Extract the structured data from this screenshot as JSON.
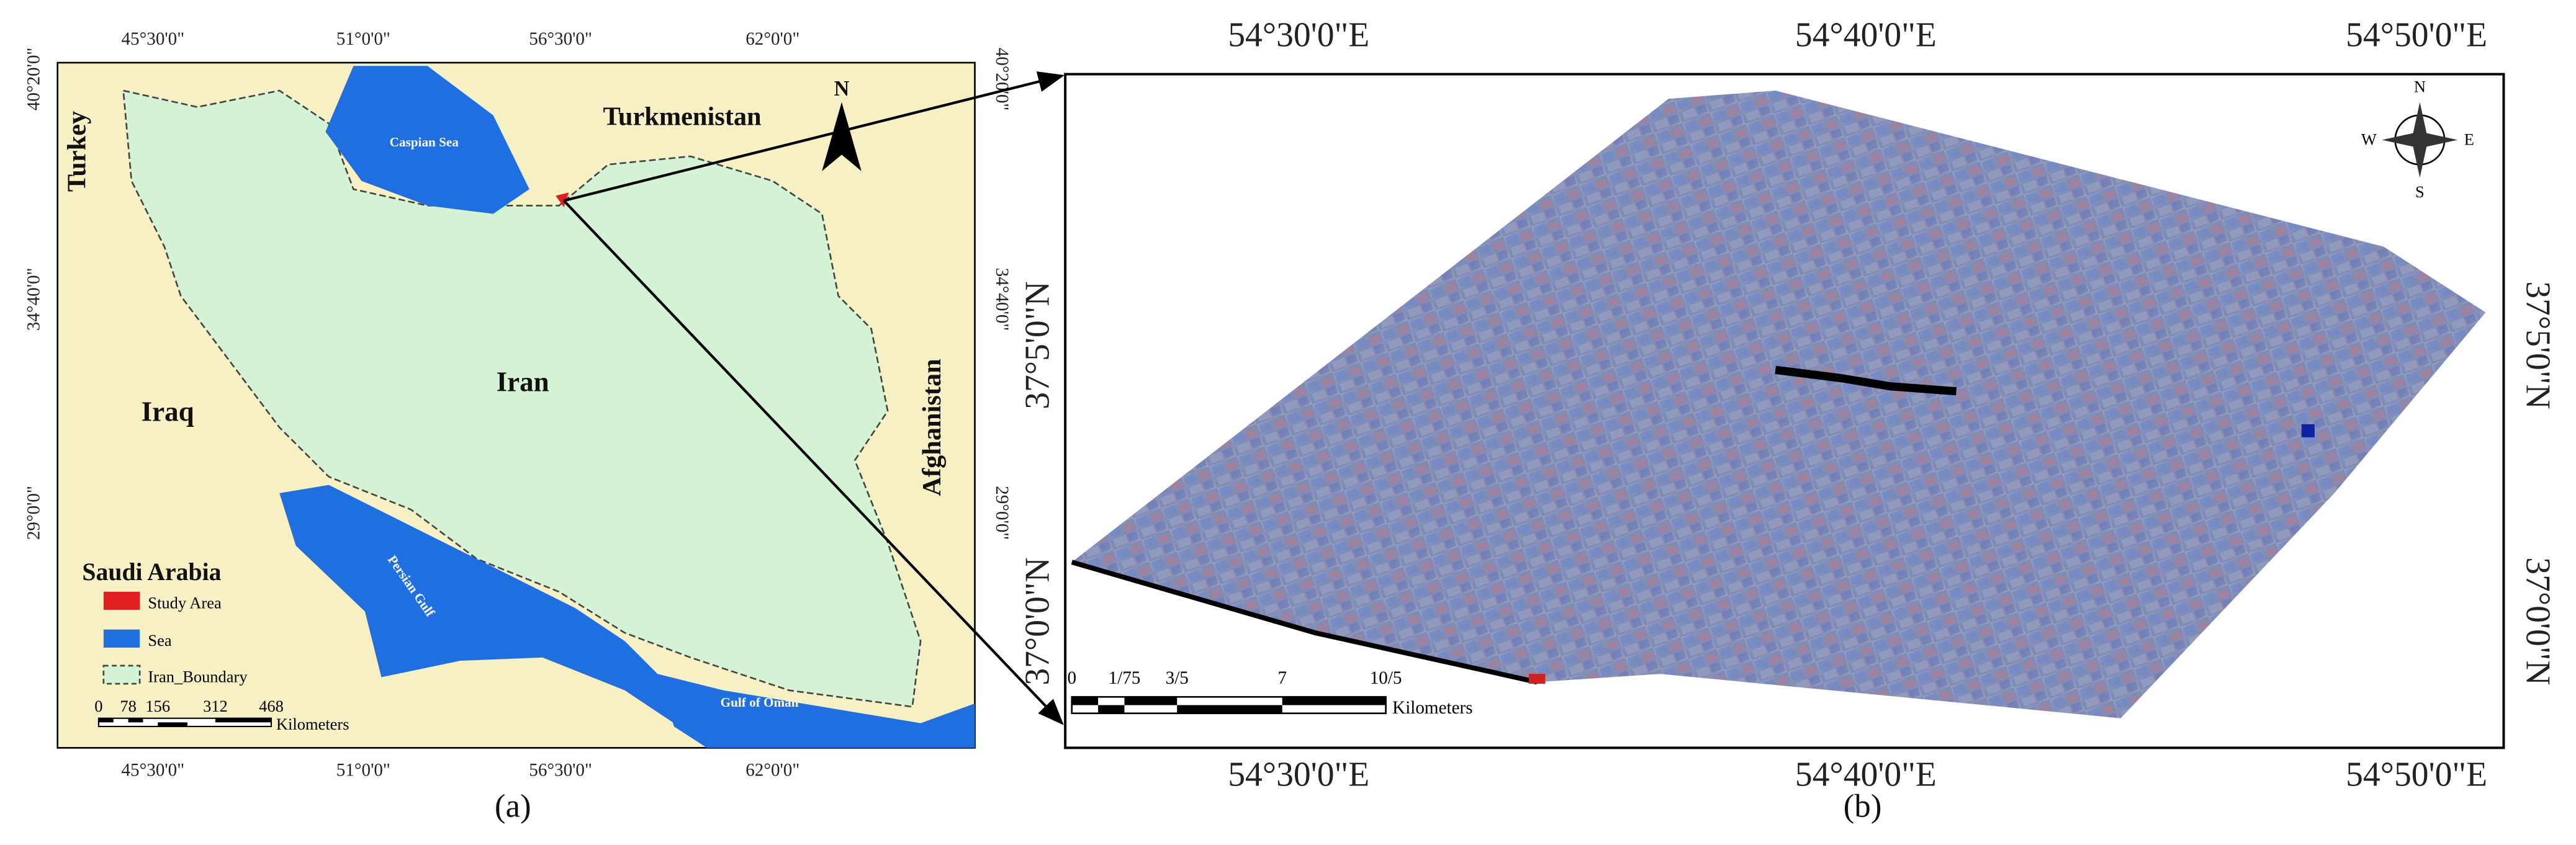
{
  "panel_a": {
    "top_labels": [
      "45°30'0\"",
      "51°0'0\"",
      "56°30'0\"",
      "62°0'0\""
    ],
    "bottom_labels": [
      "45°30'0\"",
      "51°0'0\"",
      "56°30'0\"",
      "62°0'0\""
    ],
    "left_labels": [
      "40°20'0\"",
      "34°40'0\"",
      "29°0'0\""
    ],
    "right_labels": [
      "40°20'0\"",
      "34°40'0\"",
      "29°0'0\""
    ],
    "places": {
      "turkey": "Turkey",
      "turkmenistan": "Turkmenistan",
      "caspian": "Caspian Sea",
      "iran": "Iran",
      "iraq": "Iraq",
      "afghanistan": "Afghanistan",
      "saudi": "Saudi Arabia",
      "persian_gulf": "Persian Gulf",
      "oman": "Gulf of Oman"
    },
    "north": "N",
    "legend": [
      "Study Area",
      "Sea",
      "Iran_Boundary"
    ],
    "scale_labels": [
      "0",
      "78",
      "156",
      "312",
      "468"
    ],
    "scale_unit": "Kilometers",
    "caption": "(a)"
  },
  "panel_b": {
    "top_labels": [
      "54°30'0\"E",
      "54°40'0\"E",
      "54°50'0\"E"
    ],
    "bottom_labels": [
      "54°30'0\"E",
      "54°40'0\"E",
      "54°50'0\"E"
    ],
    "left_labels": [
      "37°5'0\"N",
      "37°0'0\"N"
    ],
    "right_labels": [
      "37°5'0\"N",
      "37°0'0\"N"
    ],
    "compass": [
      "N",
      "S",
      "E",
      "W"
    ],
    "scale_labels": [
      "0",
      "1/75",
      "3/5",
      "7",
      "10/5"
    ],
    "scale_unit": "Kilometers",
    "caption": "(b)"
  }
}
